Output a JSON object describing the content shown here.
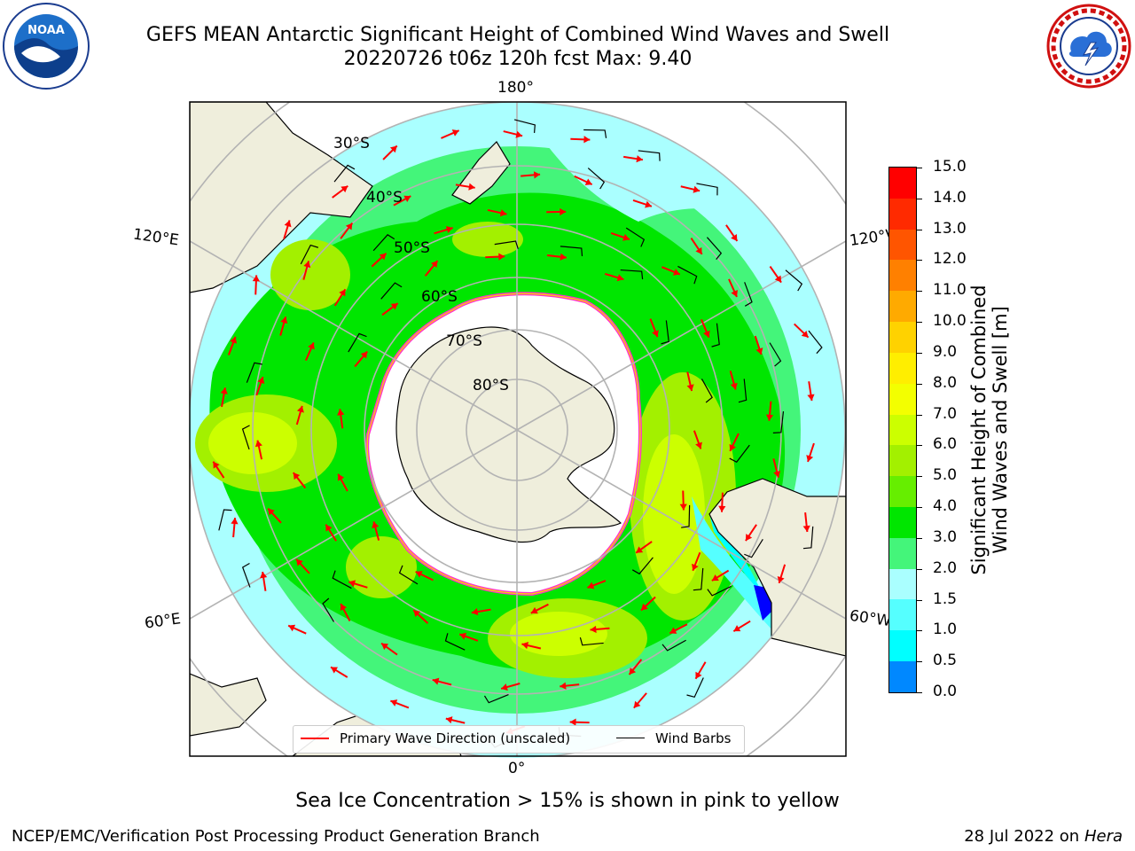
{
  "header": {
    "title_line1": "GEFS MEAN Antarctic Significant Height of Combined Wind Waves and Swell",
    "title_line2": "20220726 t06z 120h fcst   Max: 9.40"
  },
  "map": {
    "longitude_labels": [
      "180°",
      "120°E",
      "120°W",
      "60°E",
      "60°W",
      "0°"
    ],
    "latitude_labels": [
      "30°S",
      "40°S",
      "50°S",
      "60°S",
      "70°S",
      "80°S"
    ],
    "colors": {
      "land": "#efeedc",
      "ice_edge": "#ff33cc",
      "graticule": "#b3b3b3",
      "wave_arrow": "#ff0000",
      "wind_barb": "#000000"
    }
  },
  "legend": {
    "wave_label": "Primary Wave Direction (unscaled)",
    "barb_label": "Wind Barbs"
  },
  "colorbar": {
    "label_line1": "Significant Height of Combined",
    "label_line2": "Wind Waves and Swell [m]",
    "ticks": [
      "15.0",
      "14.0",
      "13.0",
      "12.0",
      "11.0",
      "10.0",
      "9.0",
      "8.0",
      "7.0",
      "6.0",
      "5.0",
      "4.0",
      "3.0",
      "2.0",
      "1.5",
      "1.0",
      "0.5",
      "0.0"
    ],
    "colors": [
      "#ff0000",
      "#ff2a00",
      "#ff5500",
      "#ff8000",
      "#ffaa00",
      "#ffd200",
      "#ffee00",
      "#f3ff00",
      "#ccff00",
      "#a3f000",
      "#66ee00",
      "#00e600",
      "#44f57a",
      "#aaffff",
      "#55ffff",
      "#00ffff",
      "#0088ff",
      "#0000ff"
    ]
  },
  "note": "Sea Ice Concentration > 15% is shown in pink to yellow",
  "footer": {
    "left": "NCEP/EMC/Verification Post Processing Product Generation Branch",
    "right_date": "28 Jul 2022 on ",
    "right_host": "Hera"
  }
}
